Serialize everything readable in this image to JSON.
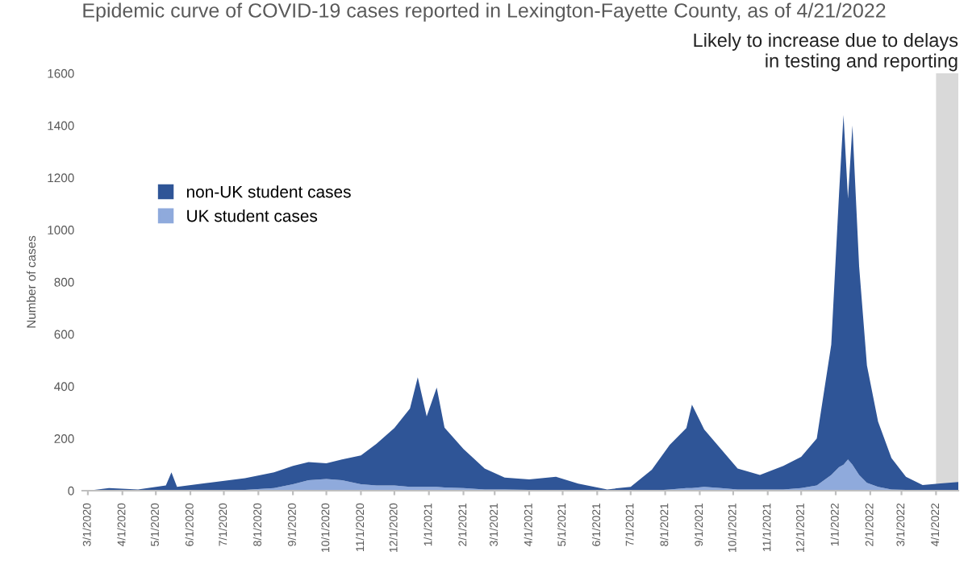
{
  "chart_data": {
    "type": "area",
    "stacked": true,
    "title": "Epidemic curve of COVID-19 cases reported in Lexington-Fayette County, as of 4/21/2022",
    "ylabel": "Number of cases",
    "x": [
      "2020-03-01",
      "2020-03-20",
      "2020-04-15",
      "2020-05-10",
      "2020-05-15",
      "2020-05-20",
      "2020-06-20",
      "2020-07-20",
      "2020-08-15",
      "2020-09-01",
      "2020-09-15",
      "2020-10-01",
      "2020-10-15",
      "2020-11-01",
      "2020-11-15",
      "2020-12-01",
      "2020-12-15",
      "2020-12-22",
      "2020-12-30",
      "2021-01-08",
      "2021-01-15",
      "2021-02-01",
      "2021-02-20",
      "2021-03-10",
      "2021-04-01",
      "2021-04-25",
      "2021-05-15",
      "2021-06-10",
      "2021-07-01",
      "2021-07-20",
      "2021-08-05",
      "2021-08-20",
      "2021-08-25",
      "2021-09-05",
      "2021-09-20",
      "2021-10-05",
      "2021-10-25",
      "2021-11-15",
      "2021-12-01",
      "2021-12-15",
      "2021-12-28",
      "2022-01-04",
      "2022-01-08",
      "2022-01-12",
      "2022-01-16",
      "2022-01-22",
      "2022-01-29",
      "2022-02-08",
      "2022-02-20",
      "2022-03-05",
      "2022-03-20",
      "2022-04-05",
      "2022-04-21"
    ],
    "series": [
      {
        "name": "UK student cases",
        "color": "#8faadc",
        "values": [
          0,
          0,
          0,
          0,
          0,
          0,
          2,
          3,
          10,
          25,
          40,
          45,
          40,
          25,
          20,
          20,
          15,
          15,
          15,
          15,
          12,
          10,
          5,
          5,
          3,
          3,
          2,
          0,
          0,
          0,
          5,
          10,
          10,
          15,
          10,
          5,
          5,
          5,
          10,
          20,
          60,
          90,
          100,
          120,
          100,
          60,
          30,
          15,
          5,
          3,
          2,
          3,
          3
        ]
      },
      {
        "name": "non-UK student cases",
        "color": "#2f5597",
        "values": [
          0,
          10,
          5,
          20,
          70,
          15,
          30,
          45,
          60,
          70,
          70,
          60,
          80,
          110,
          160,
          220,
          300,
          420,
          270,
          380,
          230,
          150,
          80,
          45,
          40,
          50,
          25,
          5,
          15,
          80,
          170,
          230,
          320,
          220,
          150,
          80,
          55,
          90,
          120,
          180,
          500,
          1050,
          1340,
          1000,
          1300,
          800,
          450,
          250,
          120,
          50,
          20,
          25,
          30
        ]
      }
    ],
    "xlim": [
      "2020-02-25",
      "2022-04-21"
    ],
    "xticks": [
      {
        "value": "2020-03-01",
        "label": "3/1/2020"
      },
      {
        "value": "2020-04-01",
        "label": "4/1/2020"
      },
      {
        "value": "2020-05-01",
        "label": "5/1/2020"
      },
      {
        "value": "2020-06-01",
        "label": "6/1/2020"
      },
      {
        "value": "2020-07-01",
        "label": "7/1/2020"
      },
      {
        "value": "2020-08-01",
        "label": "8/1/2020"
      },
      {
        "value": "2020-09-01",
        "label": "9/1/2020"
      },
      {
        "value": "2020-10-01",
        "label": "10/1/2020"
      },
      {
        "value": "2020-11-01",
        "label": "11/1/2020"
      },
      {
        "value": "2020-12-01",
        "label": "12/1/2020"
      },
      {
        "value": "2021-01-01",
        "label": "1/1/2021"
      },
      {
        "value": "2021-02-01",
        "label": "2/1/2021"
      },
      {
        "value": "2021-03-01",
        "label": "3/1/2021"
      },
      {
        "value": "2021-04-01",
        "label": "4/1/2021"
      },
      {
        "value": "2021-05-01",
        "label": "5/1/2021"
      },
      {
        "value": "2021-06-01",
        "label": "6/1/2021"
      },
      {
        "value": "2021-07-01",
        "label": "7/1/2021"
      },
      {
        "value": "2021-08-01",
        "label": "8/1/2021"
      },
      {
        "value": "2021-09-01",
        "label": "9/1/2021"
      },
      {
        "value": "2021-10-01",
        "label": "10/1/2021"
      },
      {
        "value": "2021-11-01",
        "label": "11/1/2021"
      },
      {
        "value": "2021-12-01",
        "label": "12/1/2021"
      },
      {
        "value": "2022-01-01",
        "label": "1/1/2022"
      },
      {
        "value": "2022-02-01",
        "label": "2/1/2022"
      },
      {
        "value": "2022-03-01",
        "label": "3/1/2022"
      },
      {
        "value": "2022-04-01",
        "label": "4/1/2022"
      }
    ],
    "ylim": [
      0,
      1600
    ],
    "yticks": [
      0,
      200,
      400,
      600,
      800,
      1000,
      1200,
      1400,
      1600
    ],
    "bands": [
      {
        "axis": "x",
        "from": "2022-04-01",
        "to": "2022-04-21",
        "label": "Likely to increase due to delays in testing and reporting",
        "color": "#d9d9d9"
      }
    ],
    "grid": false,
    "legend": "top left"
  }
}
